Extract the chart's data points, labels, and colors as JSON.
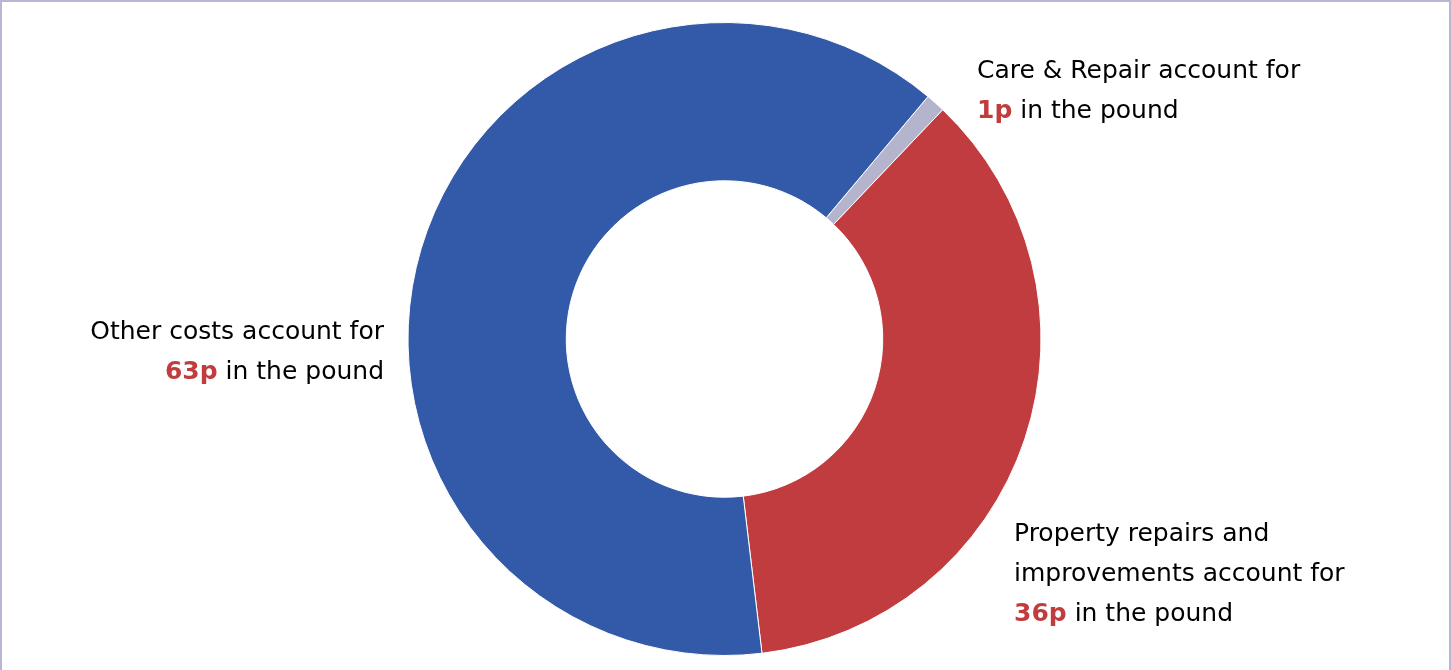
{
  "chart_data": {
    "type": "donut",
    "categories": [
      "Care & Repair account for",
      "Property repairs and improvements account for",
      "Other costs account for"
    ],
    "values": [
      1,
      36,
      63
    ],
    "colors": [
      "#b4b4cc",
      "#c13c3e",
      "#335aa8"
    ],
    "value_labels": [
      "1p in the pound",
      "36p in the pound",
      "63p in the pound"
    ],
    "legend": false
  }
}
